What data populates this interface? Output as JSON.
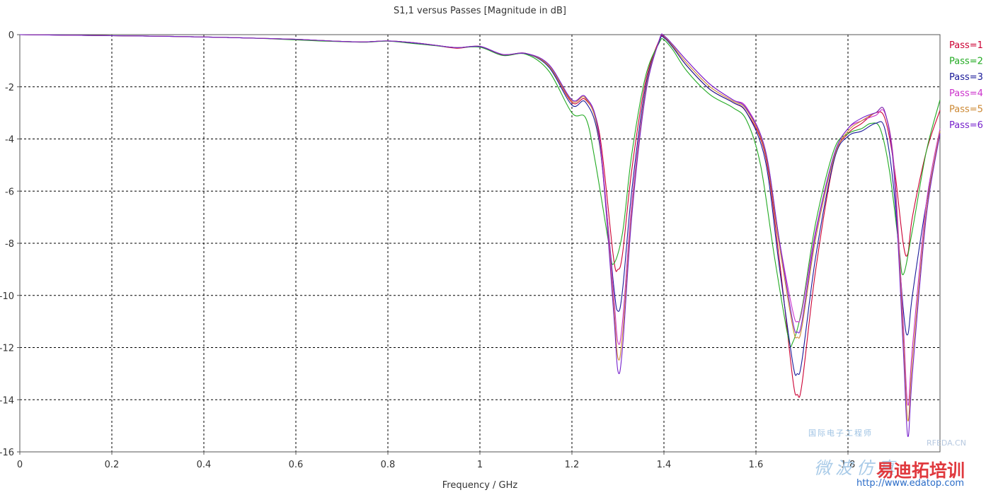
{
  "chart_data": {
    "type": "line",
    "title": "S1,1 versus Passes [Magnitude in dB]",
    "xlabel": "Frequency / GHz",
    "ylabel": "",
    "xlim": [
      0,
      2.0
    ],
    "ylim": [
      -16,
      0
    ],
    "xticks": [
      0,
      0.2,
      0.4,
      0.6,
      0.8,
      1,
      1.2,
      1.4,
      1.6,
      1.8
    ],
    "yticks": [
      0,
      -2,
      -4,
      -6,
      -8,
      -10,
      -12,
      -14,
      -16
    ],
    "grid": true,
    "legend_position": "right",
    "series": [
      {
        "name": "Pass=1",
        "color": "#cc0033",
        "points": [
          [
            0,
            0
          ],
          [
            0.1,
            -0.02
          ],
          [
            0.2,
            -0.04
          ],
          [
            0.3,
            -0.06
          ],
          [
            0.4,
            -0.09
          ],
          [
            0.5,
            -0.13
          ],
          [
            0.6,
            -0.18
          ],
          [
            0.65,
            -0.22
          ],
          [
            0.7,
            -0.26
          ],
          [
            0.75,
            -0.28
          ],
          [
            0.8,
            -0.24
          ],
          [
            0.85,
            -0.3
          ],
          [
            0.9,
            -0.4
          ],
          [
            0.95,
            -0.52
          ],
          [
            1.0,
            -0.45
          ],
          [
            1.05,
            -0.78
          ],
          [
            1.1,
            -0.72
          ],
          [
            1.15,
            -1.2
          ],
          [
            1.2,
            -2.6
          ],
          [
            1.23,
            -2.5
          ],
          [
            1.26,
            -3.8
          ],
          [
            1.29,
            -8.5
          ],
          [
            1.3,
            -9.0
          ],
          [
            1.31,
            -8.4
          ],
          [
            1.33,
            -5.2
          ],
          [
            1.36,
            -1.8
          ],
          [
            1.39,
            -0.2
          ],
          [
            1.4,
            -0.1
          ],
          [
            1.42,
            -0.5
          ],
          [
            1.45,
            -1.2
          ],
          [
            1.5,
            -2.1
          ],
          [
            1.55,
            -2.6
          ],
          [
            1.58,
            -3.0
          ],
          [
            1.62,
            -4.6
          ],
          [
            1.65,
            -8.5
          ],
          [
            1.68,
            -13.2
          ],
          [
            1.69,
            -13.8
          ],
          [
            1.7,
            -13.4
          ],
          [
            1.73,
            -9.0
          ],
          [
            1.77,
            -4.8
          ],
          [
            1.8,
            -3.8
          ],
          [
            1.83,
            -3.4
          ],
          [
            1.86,
            -3.0
          ],
          [
            1.88,
            -3.2
          ],
          [
            1.9,
            -5.0
          ],
          [
            1.92,
            -8.0
          ],
          [
            1.93,
            -8.4
          ],
          [
            1.94,
            -7.0
          ],
          [
            1.97,
            -4.5
          ],
          [
            2.0,
            -2.9
          ]
        ]
      },
      {
        "name": "Pass=2",
        "color": "#22aa22",
        "points": [
          [
            0,
            0
          ],
          [
            0.1,
            -0.02
          ],
          [
            0.2,
            -0.04
          ],
          [
            0.3,
            -0.06
          ],
          [
            0.4,
            -0.09
          ],
          [
            0.5,
            -0.13
          ],
          [
            0.6,
            -0.2
          ],
          [
            0.65,
            -0.24
          ],
          [
            0.7,
            -0.27
          ],
          [
            0.75,
            -0.29
          ],
          [
            0.8,
            -0.25
          ],
          [
            0.85,
            -0.33
          ],
          [
            0.9,
            -0.42
          ],
          [
            0.95,
            -0.5
          ],
          [
            1.0,
            -0.48
          ],
          [
            1.05,
            -0.8
          ],
          [
            1.1,
            -0.75
          ],
          [
            1.15,
            -1.4
          ],
          [
            1.2,
            -3.0
          ],
          [
            1.23,
            -3.2
          ],
          [
            1.25,
            -4.8
          ],
          [
            1.28,
            -8.0
          ],
          [
            1.29,
            -8.8
          ],
          [
            1.31,
            -7.6
          ],
          [
            1.33,
            -4.6
          ],
          [
            1.36,
            -1.6
          ],
          [
            1.39,
            -0.3
          ],
          [
            1.4,
            -0.2
          ],
          [
            1.42,
            -0.6
          ],
          [
            1.45,
            -1.4
          ],
          [
            1.5,
            -2.3
          ],
          [
            1.55,
            -2.8
          ],
          [
            1.58,
            -3.3
          ],
          [
            1.61,
            -5.0
          ],
          [
            1.64,
            -8.5
          ],
          [
            1.67,
            -11.6
          ],
          [
            1.68,
            -11.8
          ],
          [
            1.7,
            -10.5
          ],
          [
            1.73,
            -7.2
          ],
          [
            1.77,
            -4.4
          ],
          [
            1.8,
            -3.8
          ],
          [
            1.83,
            -3.6
          ],
          [
            1.85,
            -3.4
          ],
          [
            1.87,
            -3.6
          ],
          [
            1.89,
            -5.2
          ],
          [
            1.91,
            -8.0
          ],
          [
            1.92,
            -9.2
          ],
          [
            1.94,
            -7.5
          ],
          [
            1.97,
            -4.5
          ],
          [
            2.0,
            -2.5
          ]
        ]
      },
      {
        "name": "Pass=3",
        "color": "#1a1a99",
        "points": [
          [
            0,
            0
          ],
          [
            0.1,
            -0.02
          ],
          [
            0.2,
            -0.04
          ],
          [
            0.3,
            -0.06
          ],
          [
            0.4,
            -0.09
          ],
          [
            0.5,
            -0.13
          ],
          [
            0.6,
            -0.18
          ],
          [
            0.65,
            -0.22
          ],
          [
            0.7,
            -0.26
          ],
          [
            0.75,
            -0.28
          ],
          [
            0.8,
            -0.24
          ],
          [
            0.85,
            -0.31
          ],
          [
            0.9,
            -0.4
          ],
          [
            0.95,
            -0.5
          ],
          [
            1.0,
            -0.46
          ],
          [
            1.05,
            -0.78
          ],
          [
            1.1,
            -0.73
          ],
          [
            1.15,
            -1.25
          ],
          [
            1.2,
            -2.7
          ],
          [
            1.23,
            -2.6
          ],
          [
            1.26,
            -4.2
          ],
          [
            1.29,
            -9.5
          ],
          [
            1.3,
            -10.6
          ],
          [
            1.31,
            -9.8
          ],
          [
            1.33,
            -6.0
          ],
          [
            1.36,
            -2.0
          ],
          [
            1.39,
            -0.25
          ],
          [
            1.4,
            -0.12
          ],
          [
            1.42,
            -0.5
          ],
          [
            1.45,
            -1.2
          ],
          [
            1.5,
            -2.1
          ],
          [
            1.55,
            -2.6
          ],
          [
            1.58,
            -3.0
          ],
          [
            1.62,
            -4.8
          ],
          [
            1.65,
            -8.8
          ],
          [
            1.68,
            -12.6
          ],
          [
            1.69,
            -13.0
          ],
          [
            1.7,
            -12.5
          ],
          [
            1.73,
            -8.5
          ],
          [
            1.77,
            -4.8
          ],
          [
            1.8,
            -3.9
          ],
          [
            1.83,
            -3.7
          ],
          [
            1.86,
            -3.4
          ],
          [
            1.88,
            -3.6
          ],
          [
            1.9,
            -6.0
          ],
          [
            1.92,
            -10.5
          ],
          [
            1.93,
            -11.5
          ],
          [
            1.94,
            -10.0
          ],
          [
            1.97,
            -6.5
          ],
          [
            2.0,
            -3.8
          ]
        ]
      },
      {
        "name": "Pass=4",
        "color": "#cc33cc",
        "points": [
          [
            0,
            0
          ],
          [
            0.1,
            -0.02
          ],
          [
            0.2,
            -0.04
          ],
          [
            0.3,
            -0.06
          ],
          [
            0.4,
            -0.09
          ],
          [
            0.5,
            -0.13
          ],
          [
            0.6,
            -0.18
          ],
          [
            0.65,
            -0.22
          ],
          [
            0.7,
            -0.26
          ],
          [
            0.75,
            -0.28
          ],
          [
            0.8,
            -0.24
          ],
          [
            0.85,
            -0.3
          ],
          [
            0.9,
            -0.4
          ],
          [
            0.95,
            -0.5
          ],
          [
            1.0,
            -0.45
          ],
          [
            1.05,
            -0.76
          ],
          [
            1.1,
            -0.72
          ],
          [
            1.15,
            -1.15
          ],
          [
            1.2,
            -2.5
          ],
          [
            1.23,
            -2.4
          ],
          [
            1.26,
            -4.0
          ],
          [
            1.29,
            -9.8
          ],
          [
            1.3,
            -11.8
          ],
          [
            1.31,
            -11.0
          ],
          [
            1.33,
            -6.5
          ],
          [
            1.36,
            -2.2
          ],
          [
            1.39,
            -0.2
          ],
          [
            1.4,
            -0.05
          ],
          [
            1.42,
            -0.4
          ],
          [
            1.45,
            -1.0
          ],
          [
            1.5,
            -1.9
          ],
          [
            1.55,
            -2.5
          ],
          [
            1.58,
            -2.8
          ],
          [
            1.62,
            -4.4
          ],
          [
            1.65,
            -7.8
          ],
          [
            1.68,
            -10.6
          ],
          [
            1.69,
            -11.0
          ],
          [
            1.7,
            -10.6
          ],
          [
            1.73,
            -7.5
          ],
          [
            1.77,
            -4.6
          ],
          [
            1.8,
            -3.6
          ],
          [
            1.83,
            -3.3
          ],
          [
            1.86,
            -3.1
          ],
          [
            1.88,
            -3.0
          ],
          [
            1.9,
            -5.0
          ],
          [
            1.92,
            -11.0
          ],
          [
            1.93,
            -14.2
          ],
          [
            1.94,
            -12.0
          ],
          [
            1.97,
            -6.5
          ],
          [
            2.0,
            -3.6
          ]
        ]
      },
      {
        "name": "Pass=5",
        "color": "#cc8833",
        "points": [
          [
            0,
            0
          ],
          [
            0.1,
            -0.02
          ],
          [
            0.2,
            -0.04
          ],
          [
            0.3,
            -0.06
          ],
          [
            0.4,
            -0.09
          ],
          [
            0.5,
            -0.13
          ],
          [
            0.6,
            -0.18
          ],
          [
            0.65,
            -0.22
          ],
          [
            0.7,
            -0.26
          ],
          [
            0.75,
            -0.28
          ],
          [
            0.8,
            -0.24
          ],
          [
            0.85,
            -0.3
          ],
          [
            0.9,
            -0.4
          ],
          [
            0.95,
            -0.5
          ],
          [
            1.0,
            -0.45
          ],
          [
            1.05,
            -0.77
          ],
          [
            1.1,
            -0.72
          ],
          [
            1.15,
            -1.2
          ],
          [
            1.2,
            -2.55
          ],
          [
            1.23,
            -2.45
          ],
          [
            1.26,
            -4.1
          ],
          [
            1.29,
            -10.2
          ],
          [
            1.3,
            -12.4
          ],
          [
            1.31,
            -11.5
          ],
          [
            1.33,
            -6.8
          ],
          [
            1.36,
            -2.2
          ],
          [
            1.39,
            -0.2
          ],
          [
            1.4,
            -0.06
          ],
          [
            1.42,
            -0.45
          ],
          [
            1.45,
            -1.1
          ],
          [
            1.5,
            -2.0
          ],
          [
            1.55,
            -2.55
          ],
          [
            1.58,
            -2.9
          ],
          [
            1.62,
            -4.5
          ],
          [
            1.65,
            -8.0
          ],
          [
            1.68,
            -11.2
          ],
          [
            1.69,
            -11.6
          ],
          [
            1.7,
            -11.2
          ],
          [
            1.73,
            -7.8
          ],
          [
            1.77,
            -4.7
          ],
          [
            1.8,
            -3.7
          ],
          [
            1.83,
            -3.3
          ],
          [
            1.86,
            -3.0
          ],
          [
            1.88,
            -2.95
          ],
          [
            1.9,
            -5.2
          ],
          [
            1.92,
            -11.5
          ],
          [
            1.93,
            -14.8
          ],
          [
            1.94,
            -12.5
          ],
          [
            1.97,
            -6.8
          ],
          [
            2.0,
            -3.7
          ]
        ]
      },
      {
        "name": "Pass=6",
        "color": "#7722cc",
        "points": [
          [
            0,
            0
          ],
          [
            0.1,
            -0.02
          ],
          [
            0.2,
            -0.04
          ],
          [
            0.3,
            -0.06
          ],
          [
            0.4,
            -0.09
          ],
          [
            0.5,
            -0.13
          ],
          [
            0.6,
            -0.18
          ],
          [
            0.65,
            -0.22
          ],
          [
            0.7,
            -0.26
          ],
          [
            0.75,
            -0.28
          ],
          [
            0.8,
            -0.24
          ],
          [
            0.85,
            -0.3
          ],
          [
            0.9,
            -0.4
          ],
          [
            0.95,
            -0.5
          ],
          [
            1.0,
            -0.45
          ],
          [
            1.05,
            -0.76
          ],
          [
            1.1,
            -0.72
          ],
          [
            1.15,
            -1.15
          ],
          [
            1.2,
            -2.5
          ],
          [
            1.23,
            -2.4
          ],
          [
            1.26,
            -4.0
          ],
          [
            1.29,
            -10.5
          ],
          [
            1.3,
            -12.9
          ],
          [
            1.31,
            -12.0
          ],
          [
            1.33,
            -7.0
          ],
          [
            1.36,
            -2.3
          ],
          [
            1.39,
            -0.2
          ],
          [
            1.4,
            -0.05
          ],
          [
            1.42,
            -0.4
          ],
          [
            1.45,
            -1.0
          ],
          [
            1.5,
            -1.9
          ],
          [
            1.55,
            -2.5
          ],
          [
            1.58,
            -2.85
          ],
          [
            1.62,
            -4.4
          ],
          [
            1.65,
            -7.8
          ],
          [
            1.68,
            -11.0
          ],
          [
            1.69,
            -11.4
          ],
          [
            1.7,
            -11.0
          ],
          [
            1.73,
            -7.6
          ],
          [
            1.77,
            -4.6
          ],
          [
            1.8,
            -3.6
          ],
          [
            1.83,
            -3.2
          ],
          [
            1.86,
            -3.0
          ],
          [
            1.88,
            -2.95
          ],
          [
            1.9,
            -5.3
          ],
          [
            1.92,
            -12.0
          ],
          [
            1.93,
            -15.4
          ],
          [
            1.94,
            -13.0
          ],
          [
            1.97,
            -7.0
          ],
          [
            2.0,
            -3.8
          ]
        ]
      }
    ]
  },
  "watermark": {
    "site_short": "RFEDA.CN",
    "cn_top": "国际电子工程师",
    "cn_mid": "微波仿真",
    "brand": "易迪拓培训",
    "url": "http://www.edatop.com"
  }
}
